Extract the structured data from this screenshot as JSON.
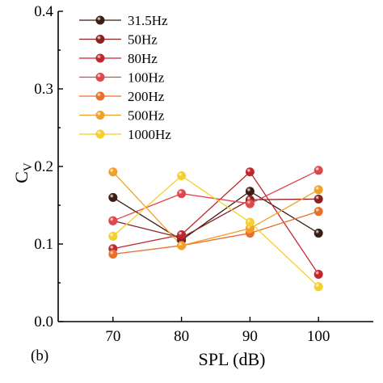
{
  "panel_label": "(b)",
  "chart_data": {
    "type": "line",
    "xlabel": "SPL (dB)",
    "ylabel_main": "C",
    "ylabel_sub": "V",
    "x": [
      70,
      80,
      90,
      100
    ],
    "xlim": [
      62,
      108
    ],
    "ylim": [
      0.0,
      0.4
    ],
    "xticks": [
      "70",
      "80",
      "90",
      "100"
    ],
    "yticks": [
      "0.0",
      "0.1",
      "0.2",
      "0.3",
      "0.4"
    ],
    "grid": false,
    "legend_position": "top-left",
    "series": [
      {
        "name": "31.5Hz",
        "color": "#3a1d12",
        "values": [
          0.16,
          0.105,
          0.168,
          0.114
        ]
      },
      {
        "name": "50Hz",
        "color": "#8b2020",
        "values": [
          0.13,
          0.108,
          0.157,
          0.158
        ]
      },
      {
        "name": "80Hz",
        "color": "#c0272d",
        "values": [
          0.094,
          0.112,
          0.193,
          0.061
        ]
      },
      {
        "name": "100Hz",
        "color": "#e0474a",
        "values": [
          0.13,
          0.165,
          0.152,
          0.195
        ]
      },
      {
        "name": "200Hz",
        "color": "#e8702a",
        "values": [
          0.087,
          0.098,
          0.114,
          0.142
        ]
      },
      {
        "name": "500Hz",
        "color": "#f0a028",
        "values": [
          0.193,
          0.098,
          0.12,
          0.17
        ]
      },
      {
        "name": "1000Hz",
        "color": "#f5cf2a",
        "values": [
          0.11,
          0.188,
          0.128,
          0.045
        ]
      }
    ]
  }
}
